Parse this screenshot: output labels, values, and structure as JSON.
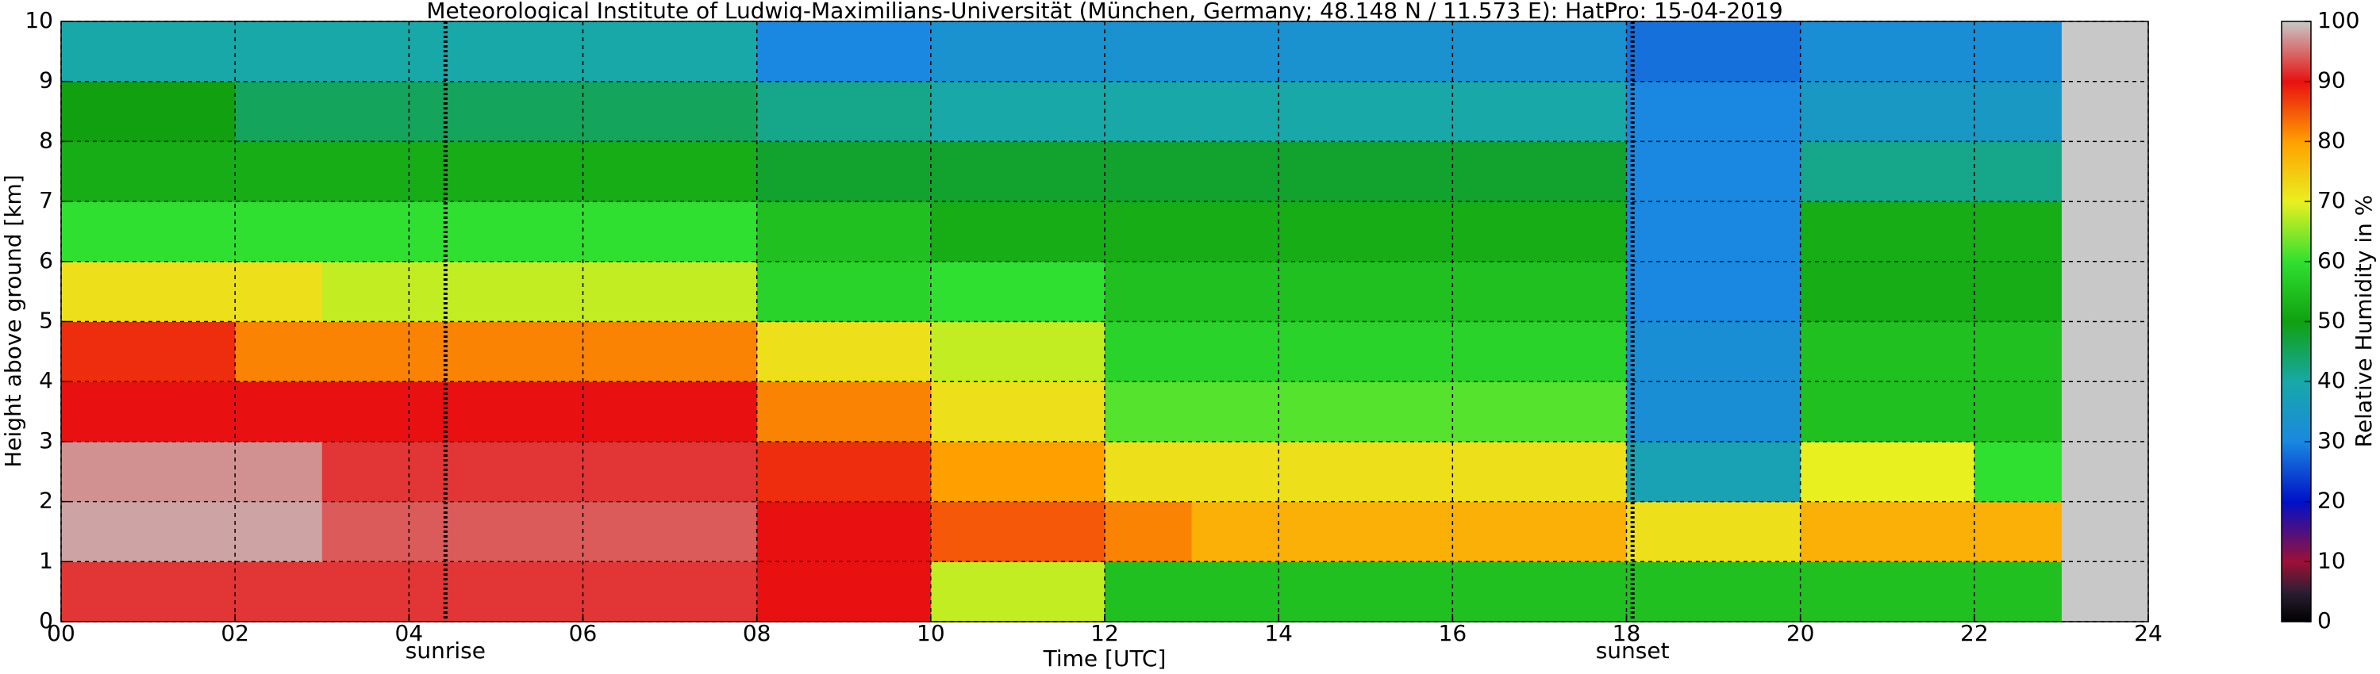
{
  "chart_data": {
    "type": "heatmap",
    "title": "Meteorological Institute of Ludwig-Maximilians-Universität (München, Germany; 48.148 N / 11.573 E):    HatPro: 15-04-2019",
    "xlabel": "Time [UTC]",
    "ylabel": "Height above ground [km]",
    "colorbar_label": "Relative Humidity in %",
    "x_edges": [
      0,
      1,
      2,
      3,
      4,
      5,
      6,
      7,
      8,
      9,
      10,
      11,
      12,
      13,
      14,
      15,
      16,
      17,
      18,
      19,
      20,
      21,
      22,
      23
    ],
    "y_edges": [
      0,
      1,
      2,
      3,
      4,
      5,
      6,
      7,
      8,
      9,
      10
    ],
    "z": [
      [
        92,
        92,
        92,
        92,
        92,
        92,
        92,
        92,
        90,
        90,
        68,
        68,
        55,
        55,
        55,
        55,
        55,
        55,
        55,
        55,
        55,
        55,
        55
      ],
      [
        98,
        98,
        98,
        94,
        94,
        94,
        94,
        94,
        90,
        90,
        85,
        85,
        82,
        78,
        78,
        78,
        78,
        78,
        72,
        72,
        78,
        78,
        78
      ],
      [
        97,
        97,
        97,
        92,
        92,
        92,
        92,
        92,
        88,
        88,
        80,
        80,
        72,
        72,
        72,
        72,
        72,
        72,
        38,
        38,
        70,
        70,
        60
      ],
      [
        90,
        90,
        90,
        90,
        90,
        90,
        90,
        90,
        82,
        82,
        72,
        72,
        62,
        62,
        62,
        62,
        62,
        62,
        32,
        32,
        55,
        55,
        55
      ],
      [
        88,
        88,
        82,
        82,
        82,
        82,
        82,
        82,
        72,
        72,
        68,
        68,
        58,
        58,
        58,
        58,
        58,
        58,
        32,
        32,
        55,
        55,
        55
      ],
      [
        72,
        72,
        72,
        68,
        68,
        68,
        68,
        68,
        58,
        58,
        60,
        60,
        55,
        55,
        55,
        55,
        55,
        55,
        30,
        30,
        52,
        52,
        52
      ],
      [
        60,
        60,
        60,
        60,
        60,
        60,
        60,
        60,
        55,
        55,
        52,
        52,
        52,
        52,
        52,
        52,
        52,
        52,
        30,
        30,
        52,
        52,
        52
      ],
      [
        52,
        52,
        52,
        52,
        52,
        52,
        52,
        52,
        48,
        48,
        48,
        48,
        48,
        48,
        48,
        48,
        48,
        48,
        30,
        30,
        42,
        42,
        42
      ],
      [
        50,
        50,
        45,
        45,
        45,
        45,
        45,
        45,
        42,
        42,
        40,
        40,
        40,
        40,
        40,
        40,
        40,
        40,
        30,
        30,
        35,
        35,
        35
      ],
      [
        40,
        40,
        40,
        40,
        40,
        40,
        40,
        40,
        30,
        30,
        33,
        33,
        33,
        33,
        33,
        33,
        33,
        33,
        28,
        28,
        32,
        32,
        32
      ]
    ],
    "xlim": [
      0,
      24
    ],
    "xticks": [
      {
        "value": 0,
        "label": "00"
      },
      {
        "value": 2,
        "label": "02"
      },
      {
        "value": 4,
        "label": "04"
      },
      {
        "value": 6,
        "label": "06"
      },
      {
        "value": 8,
        "label": "08"
      },
      10,
      12,
      14,
      16,
      18,
      20,
      22,
      24
    ],
    "ylim": [
      0,
      10
    ],
    "yticks": [
      0,
      1,
      2,
      3,
      4,
      5,
      6,
      7,
      8,
      9,
      10
    ],
    "clim": [
      0,
      100
    ],
    "cticks": [
      0,
      10,
      20,
      30,
      40,
      50,
      60,
      70,
      80,
      90,
      100
    ],
    "colorscale": [
      {
        "value": 0,
        "color": "#000000"
      },
      {
        "value": 5,
        "color": "#2b1f33"
      },
      {
        "value": 10,
        "color": "#9e1037"
      },
      {
        "value": 20,
        "color": "#0010c8"
      },
      {
        "value": 30,
        "color": "#1a88e0"
      },
      {
        "value": 40,
        "color": "#18a8a8"
      },
      {
        "value": 50,
        "color": "#10a010"
      },
      {
        "value": 60,
        "color": "#30e030"
      },
      {
        "value": 70,
        "color": "#e8f020"
      },
      {
        "value": 80,
        "color": "#ffa000"
      },
      {
        "value": 90,
        "color": "#e81010"
      },
      {
        "value": 100,
        "color": "#c8c8c8"
      }
    ],
    "missing_color": "#c8c8c8",
    "grid": true,
    "annotations": [
      {
        "text": "sunrise",
        "x": 4.42
      },
      {
        "text": "sunset",
        "x": 18.07
      }
    ]
  }
}
